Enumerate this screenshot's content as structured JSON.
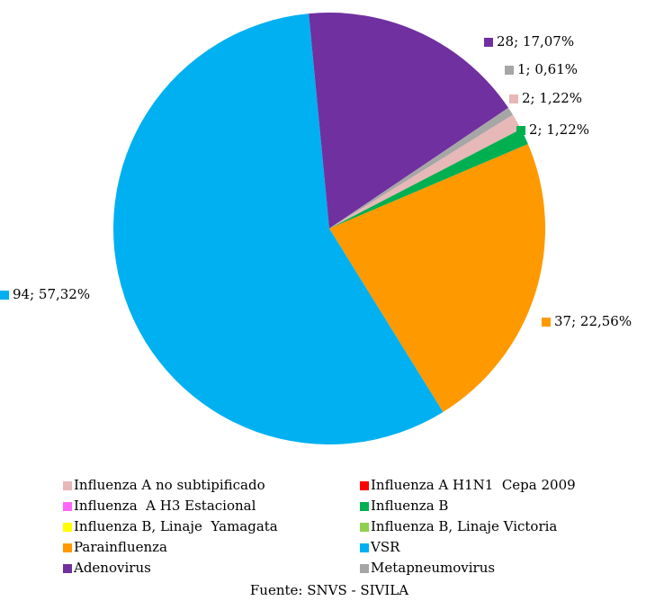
{
  "chart_data": {
    "type": "pie",
    "categories": [
      "Influenza A no subtipificado",
      "Influenza A H1N1  Cepa 2009",
      "Influenza  A H3 Estacional",
      "Influenza B",
      "Influenza B, Linaje  Yamagata",
      "Influenza B, Linaje Victoria",
      "Parainfluenza",
      "VSR",
      "Adenovirus",
      "Metapneumovirus"
    ],
    "values": [
      2,
      0,
      0,
      2,
      0,
      0,
      37,
      94,
      28,
      1
    ],
    "value_labels": [
      "2; 1,22%",
      null,
      null,
      "2; 1,22%",
      null,
      null,
      "37; 22,56%",
      "94; 57,32%",
      "28; 17,07%",
      "1; 0,61%"
    ],
    "colors": [
      "#e6b8b7",
      "#ff0000",
      "#ff66ff",
      "#00b050",
      "#ffff00",
      "#92d050",
      "#ff9900",
      "#00b0f0",
      "#7030a0",
      "#a6a6a6"
    ],
    "legend": "bottom",
    "source": "Fuente: SNVS - SIVILA"
  }
}
